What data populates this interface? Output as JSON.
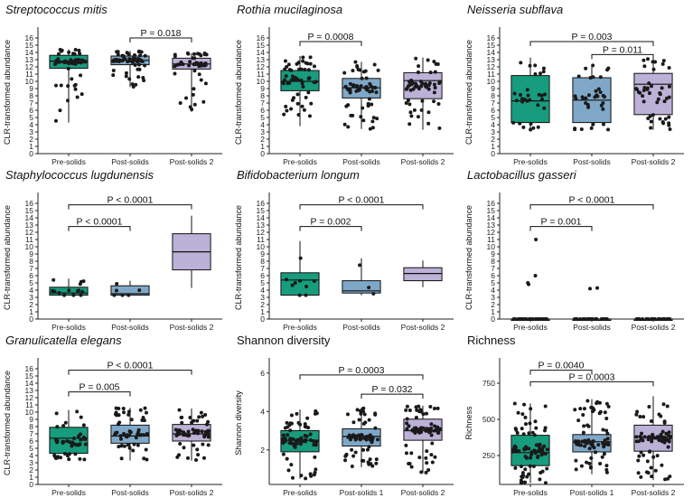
{
  "colors": {
    "group1": "#179c7d",
    "group2": "#7fa8c8",
    "group3": "#bcb1d6",
    "point": "#1a1a1a",
    "axis": "#222222"
  },
  "chart_data": [
    {
      "type": "boxplot",
      "title": "Streptococcus mitis",
      "italic": true,
      "ylabel": "CLR-transformed abundance",
      "ylim": [
        0,
        17
      ],
      "yticks": [
        0,
        1,
        2,
        3,
        4,
        5,
        6,
        7,
        8,
        9,
        10,
        11,
        12,
        13,
        14,
        15,
        16
      ],
      "categories": [
        "Pre-solids",
        "Post-solids",
        "Post-solids 2"
      ],
      "boxes": [
        {
          "min": 4.3,
          "q1": 11.8,
          "median": 12.8,
          "q3": 13.6,
          "max": 14.4
        },
        {
          "min": 9.2,
          "q1": 12.3,
          "median": 12.9,
          "q3": 13.5,
          "max": 14.2
        },
        {
          "min": 5.8,
          "q1": 11.7,
          "median": 12.4,
          "q3": 13.2,
          "max": 13.9
        }
      ],
      "n_points": [
        55,
        60,
        50
      ],
      "comparisons": [
        {
          "from": 1,
          "to": 2,
          "label": "P = 0.018",
          "y": 16.0
        }
      ]
    },
    {
      "type": "boxplot",
      "title": "Rothia mucilaginosa",
      "italic": true,
      "ylabel": "CLR-transformed abundance",
      "ylim": [
        0,
        17
      ],
      "yticks": [
        0,
        1,
        2,
        3,
        4,
        5,
        6,
        7,
        8,
        9,
        10,
        11,
        12,
        13,
        14,
        15,
        16
      ],
      "categories": [
        "Pre-solids",
        "Post-solids",
        "Post-solids 2"
      ],
      "boxes": [
        {
          "min": 3.8,
          "q1": 8.7,
          "median": 10.0,
          "q3": 11.5,
          "max": 13.5
        },
        {
          "min": 3.4,
          "q1": 7.7,
          "median": 9.1,
          "q3": 10.4,
          "max": 12.7
        },
        {
          "min": 3.3,
          "q1": 7.6,
          "median": 10.1,
          "q3": 11.2,
          "max": 13.3
        }
      ],
      "n_points": [
        55,
        60,
        55
      ],
      "comparisons": [
        {
          "from": 0,
          "to": 1,
          "label": "P = 0.0008",
          "y": 15.5
        }
      ]
    },
    {
      "type": "boxplot",
      "title": "Neisseria subflava",
      "italic": true,
      "ylabel": "CLR-transformed abundance",
      "ylim": [
        0,
        17
      ],
      "yticks": [
        0,
        1,
        2,
        3,
        4,
        5,
        6,
        7,
        8,
        9,
        10,
        11,
        12,
        13,
        14,
        15,
        16
      ],
      "categories": [
        "Pre-solids",
        "Post-solids",
        "Post-solids 2"
      ],
      "boxes": [
        {
          "min": 3.3,
          "q1": 4.3,
          "median": 7.3,
          "q3": 10.8,
          "max": 13.3
        },
        {
          "min": 3.3,
          "q1": 4.3,
          "median": 7.4,
          "q3": 10.5,
          "max": 12.2
        },
        {
          "min": 3.3,
          "q1": 5.4,
          "median": 9.6,
          "q3": 11.1,
          "max": 13.1
        }
      ],
      "n_points": [
        30,
        35,
        45
      ],
      "comparisons": [
        {
          "from": 0,
          "to": 2,
          "label": "P = 0.003",
          "y": 15.5
        },
        {
          "from": 1,
          "to": 2,
          "label": "P = 0.011",
          "y": 13.7
        }
      ]
    },
    {
      "type": "boxplot",
      "title": "Staphylococcus lugdunensis",
      "italic": true,
      "ylabel": "CLR-transformed abundance",
      "ylim": [
        0,
        17
      ],
      "yticks": [
        0,
        1,
        2,
        3,
        4,
        5,
        6,
        7,
        8,
        9,
        10,
        11,
        12,
        13,
        14,
        15,
        16
      ],
      "categories": [
        "Pre-solids",
        "Post-solids",
        "Post-solids 2"
      ],
      "boxes": [
        {
          "min": 3.3,
          "q1": 3.3,
          "median": 3.6,
          "q3": 4.4,
          "max": 5.6
        },
        {
          "min": 3.3,
          "q1": 3.3,
          "median": 3.5,
          "q3": 4.6,
          "max": 5.3
        },
        {
          "min": 4.3,
          "q1": 6.8,
          "median": 9.3,
          "q3": 11.8,
          "max": 14.3
        }
      ],
      "n_points": [
        14,
        6,
        0
      ],
      "comparisons": [
        {
          "from": 0,
          "to": 2,
          "label": "P < 0.0001",
          "y": 15.8
        },
        {
          "from": 0,
          "to": 1,
          "label": "P < 0.0001",
          "y": 12.8
        }
      ]
    },
    {
      "type": "boxplot",
      "title": "Bifidobacterium longum",
      "italic": true,
      "ylabel": "CLR-transformed abundance",
      "ylim": [
        0,
        17
      ],
      "yticks": [
        0,
        1,
        2,
        3,
        4,
        5,
        6,
        7,
        8,
        9,
        10,
        11,
        12,
        13,
        14,
        15,
        16
      ],
      "categories": [
        "Pre-solids",
        "Post-solids",
        "Post-solids 2"
      ],
      "boxes": [
        {
          "min": 3.3,
          "q1": 3.3,
          "median": 5.4,
          "q3": 6.4,
          "max": 10.8
        },
        {
          "min": 3.3,
          "q1": 3.6,
          "median": 3.9,
          "q3": 5.3,
          "max": 8.4
        },
        {
          "min": 4.4,
          "q1": 5.3,
          "median": 6.3,
          "q3": 7.1,
          "max": 8.1
        }
      ],
      "n_points": [
        9,
        3,
        0
      ],
      "comparisons": [
        {
          "from": 0,
          "to": 2,
          "label": "P < 0.0001",
          "y": 15.8
        },
        {
          "from": 0,
          "to": 1,
          "label": "P = 0.002",
          "y": 12.8
        }
      ]
    },
    {
      "type": "boxplot",
      "title": "Lactobacillus gasseri",
      "italic": true,
      "ylabel": "CLR-transformed abundance",
      "ylim": [
        0,
        17
      ],
      "yticks": [
        0,
        1,
        2,
        3,
        4,
        5,
        6,
        7,
        8,
        9,
        10,
        11,
        12,
        13,
        14,
        15,
        16
      ],
      "categories": [
        "Pre-solids",
        "Post-solids",
        "Post-solids 2"
      ],
      "boxes": [
        {
          "min": 0,
          "q1": 0,
          "median": 0,
          "q3": 0,
          "max": 0
        },
        {
          "min": 0,
          "q1": 0,
          "median": 0,
          "q3": 0,
          "max": 0
        },
        {
          "min": 0,
          "q1": 0,
          "median": 0,
          "q3": 0,
          "max": 0
        }
      ],
      "n_points": [
        25,
        25,
        25
      ],
      "outliers": [
        [
          11.0,
          6.0,
          5.0,
          4.8
        ],
        [
          4.3,
          4.2
        ],
        []
      ],
      "comparisons": [
        {
          "from": 0,
          "to": 2,
          "label": "P < 0.0001",
          "y": 15.8
        },
        {
          "from": 0,
          "to": 1,
          "label": "P = 0.001",
          "y": 12.8
        }
      ]
    },
    {
      "type": "boxplot",
      "title": "Granulicatella elegans",
      "italic": true,
      "ylabel": "CLR-transformed abundance",
      "ylim": [
        0,
        17
      ],
      "yticks": [
        0,
        1,
        2,
        3,
        4,
        5,
        6,
        7,
        8,
        9,
        10,
        11,
        12,
        13,
        14,
        15,
        16
      ],
      "categories": [
        "Pre-solids",
        "Post-solids",
        "Post-solids 2"
      ],
      "boxes": [
        {
          "min": 3.3,
          "q1": 4.3,
          "median": 6.4,
          "q3": 7.9,
          "max": 10.3
        },
        {
          "min": 3.3,
          "q1": 5.7,
          "median": 6.7,
          "q3": 8.2,
          "max": 10.6
        },
        {
          "min": 3.3,
          "q1": 6.0,
          "median": 7.0,
          "q3": 8.3,
          "max": 10.5
        }
      ],
      "n_points": [
        45,
        55,
        60
      ],
      "comparisons": [
        {
          "from": 0,
          "to": 2,
          "label": "P < 0.0001",
          "y": 15.8
        },
        {
          "from": 0,
          "to": 1,
          "label": "P = 0.005",
          "y": 12.8
        }
      ]
    },
    {
      "type": "boxplot",
      "title": "Shannon diversity",
      "italic": false,
      "ylabel": "Shannon diversity",
      "ylim": [
        0.2,
        6.6
      ],
      "yticks": [
        2,
        4,
        6
      ],
      "categories": [
        "Pre-solids",
        "Post-solids 1",
        "Post-solids 2"
      ],
      "boxes": [
        {
          "min": 0.5,
          "q1": 1.9,
          "median": 2.5,
          "q3": 3.0,
          "max": 4.1
        },
        {
          "min": 1.1,
          "q1": 2.2,
          "median": 2.7,
          "q3": 3.1,
          "max": 4.2
        },
        {
          "min": 0.8,
          "q1": 2.5,
          "median": 3.0,
          "q3": 3.6,
          "max": 4.3
        }
      ],
      "n_points": [
        70,
        70,
        70
      ],
      "comparisons": [
        {
          "from": 0,
          "to": 2,
          "label": "P = 0.0003",
          "y": 5.9
        },
        {
          "from": 1,
          "to": 2,
          "label": "P = 0.032",
          "y": 4.9
        }
      ]
    },
    {
      "type": "boxplot",
      "title": "Richness",
      "italic": false,
      "ylabel": "Richness",
      "ylim": [
        50,
        900
      ],
      "yticks": [
        250,
        500,
        750
      ],
      "categories": [
        "Pre-solids",
        "Post-solids 1",
        "Post-solids 2"
      ],
      "boxes": [
        {
          "min": 60,
          "q1": 180,
          "median": 270,
          "q3": 390,
          "max": 610
        },
        {
          "min": 120,
          "q1": 275,
          "median": 345,
          "q3": 395,
          "max": 640
        },
        {
          "min": 80,
          "q1": 280,
          "median": 380,
          "q3": 460,
          "max": 660
        }
      ],
      "n_points": [
        80,
        80,
        80
      ],
      "comparisons": [
        {
          "from": 0,
          "to": 1,
          "label": "P = 0.0040",
          "y": 840
        },
        {
          "from": 0,
          "to": 2,
          "label": "P = 0.0003",
          "y": 760
        }
      ]
    }
  ]
}
